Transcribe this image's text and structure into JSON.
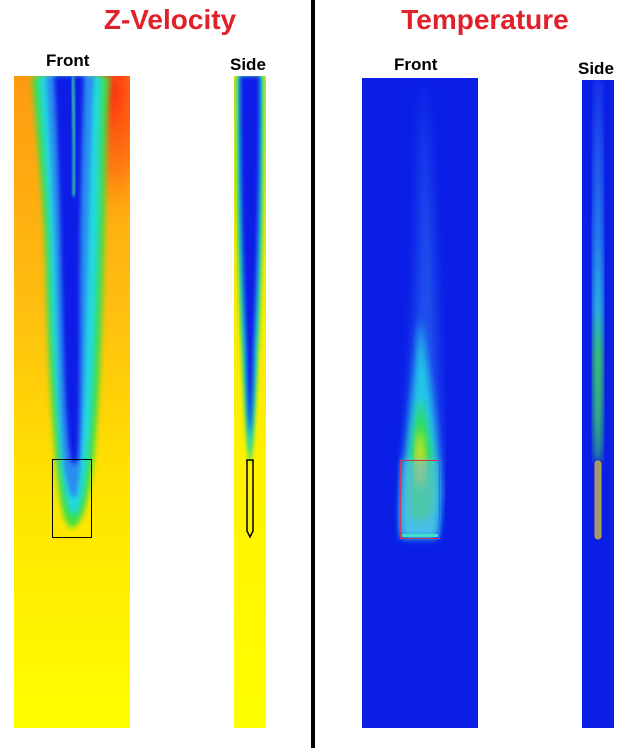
{
  "figure": {
    "left_panel": {
      "title": "Z-Velocity",
      "front_label": "Front",
      "side_label": "Side"
    },
    "right_panel": {
      "title": "Temperature",
      "front_label": "Front",
      "side_label": "Side"
    },
    "colors": {
      "title": "#e0202a",
      "divider": "#000000",
      "cold_blue": "#0a1ee6",
      "hot_red": "#ff3010",
      "mid_yellow": "#ffee00",
      "inlet_box_temp": "#c83a5a"
    }
  }
}
